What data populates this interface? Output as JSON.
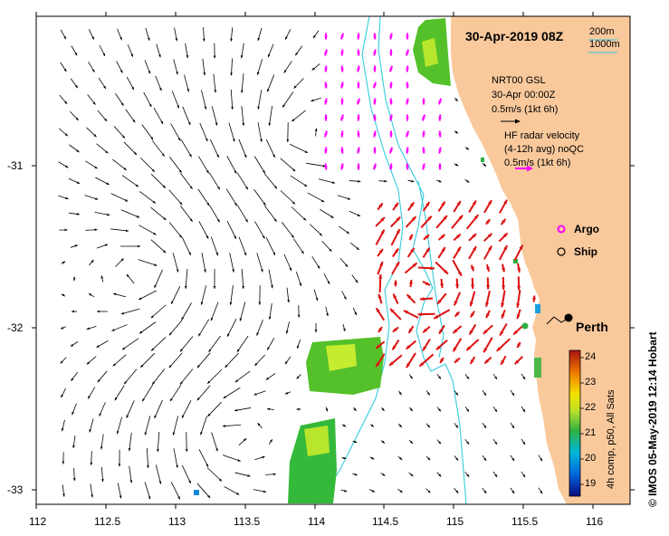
{
  "title": "30-Apr-2019 08Z",
  "depth_legend": {
    "d200": "200m",
    "d1000": "1000m"
  },
  "model": {
    "name": "NRT00 GSL",
    "date": "30-Apr 00:00Z",
    "scale": "0.5m/s (1kt 6h)"
  },
  "radar": {
    "line1": "HF radar velocity",
    "line2": "(4-12h avg) noQC",
    "scale": "0.5m/s (1kt 6h)"
  },
  "legend": {
    "argo": "Argo",
    "ship": "Ship"
  },
  "city": "Perth",
  "x_ticks": [
    "112",
    "112.5",
    "113",
    "113.5",
    "114",
    "114.5",
    "115",
    "115.5",
    "116"
  ],
  "y_ticks": [
    "-31",
    "-32",
    "-33"
  ],
  "colorbar": {
    "label": "4h comp, p50, All Sats",
    "ticks": [
      "24",
      "23",
      "22",
      "21",
      "20",
      "19"
    ],
    "min": 18.6,
    "max": 24.4
  },
  "credit": "© IMOS 05-May-2019 12:14 Hobart",
  "colors": {
    "land": "#f9c99c",
    "isobath": "#33ccdd",
    "model_arrow": "#ff00ff",
    "radar_arrow": "#dd1111"
  }
}
